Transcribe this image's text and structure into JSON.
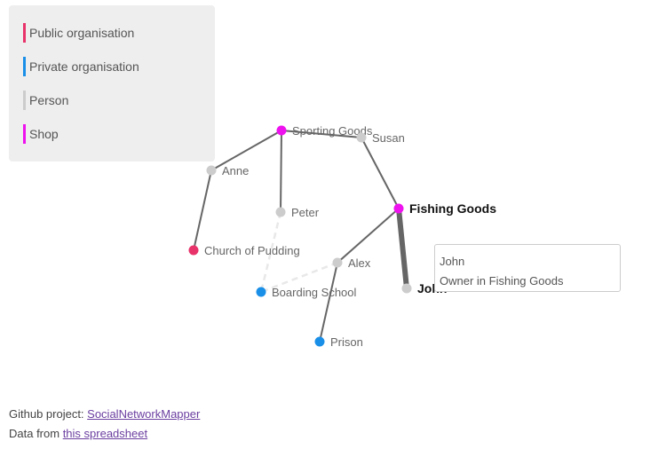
{
  "legend": {
    "items": [
      {
        "label": "Public organisation",
        "color": "#e8326a"
      },
      {
        "label": "Private organisation",
        "color": "#1a8fe8"
      },
      {
        "label": "Person",
        "color": "#cccccc"
      },
      {
        "label": "Shop",
        "color": "#ee12ee"
      }
    ]
  },
  "graph": {
    "nodes": [
      {
        "id": "sporting",
        "label": "Sporting Goods",
        "type": "Shop"
      },
      {
        "id": "susan",
        "label": "Susan",
        "type": "Person"
      },
      {
        "id": "anne",
        "label": "Anne",
        "type": "Person"
      },
      {
        "id": "peter",
        "label": "Peter",
        "type": "Person"
      },
      {
        "id": "fishing",
        "label": "Fishing Goods",
        "type": "Shop",
        "highlighted": true
      },
      {
        "id": "church",
        "label": "Church of Pudding",
        "type": "Public organisation"
      },
      {
        "id": "alex",
        "label": "Alex",
        "type": "Person"
      },
      {
        "id": "john",
        "label": "John",
        "type": "Person",
        "highlighted": true
      },
      {
        "id": "boarding",
        "label": "Boarding School",
        "type": "Private organisation"
      },
      {
        "id": "prison",
        "label": "Prison",
        "type": "Private organisation"
      }
    ],
    "links": [
      {
        "source": "sporting",
        "target": "susan",
        "style": "solid"
      },
      {
        "source": "sporting",
        "target": "anne",
        "style": "solid"
      },
      {
        "source": "sporting",
        "target": "peter",
        "style": "solid"
      },
      {
        "source": "anne",
        "target": "church",
        "style": "solid"
      },
      {
        "source": "susan",
        "target": "fishing",
        "style": "solid"
      },
      {
        "source": "fishing",
        "target": "alex",
        "style": "solid"
      },
      {
        "source": "fishing",
        "target": "john",
        "style": "thick"
      },
      {
        "source": "alex",
        "target": "prison",
        "style": "solid"
      },
      {
        "source": "peter",
        "target": "boarding",
        "style": "dashed"
      },
      {
        "source": "alex",
        "target": "boarding",
        "style": "dashed"
      }
    ]
  },
  "tooltip": {
    "name": "John",
    "role": "Owner in Fishing Goods"
  },
  "footer": {
    "github_prefix": "Github project: ",
    "github_link": "SocialNetworkMapper",
    "data_prefix": "Data from ",
    "data_link": "this spreadsheet"
  }
}
